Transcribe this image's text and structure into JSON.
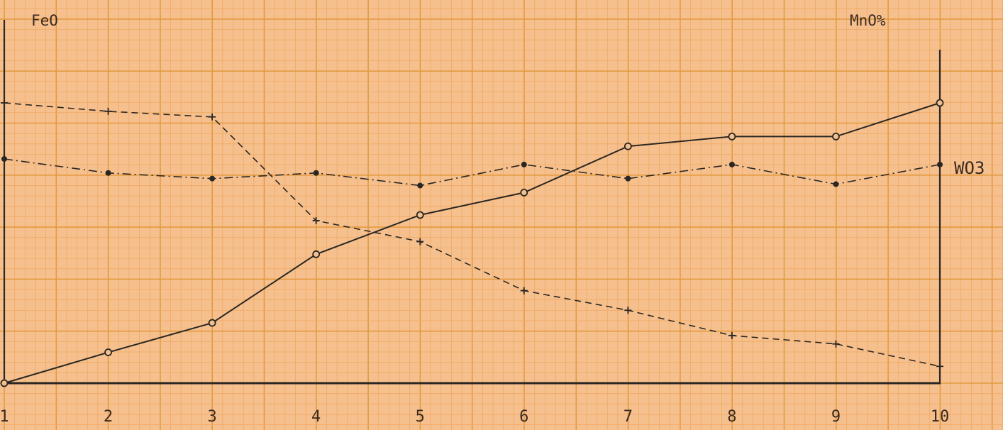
{
  "chart_data": {
    "type": "line",
    "left_axis_label": "FeO",
    "right_axis_label": "MnO%",
    "x": [
      1,
      2,
      3,
      4,
      5,
      6,
      7,
      8,
      9,
      10
    ],
    "tick_labels": [
      "1",
      "2",
      "3",
      "4",
      "5",
      "6",
      "7",
      "8",
      "9",
      "10"
    ],
    "xlim": [
      1,
      10
    ],
    "ylim": [
      0,
      100
    ],
    "grid": true,
    "series": [
      {
        "key": "mno",
        "style": "solid",
        "marker": "open-circle",
        "values": [
          0,
          11,
          21.5,
          46,
          60,
          68,
          84.5,
          88,
          88,
          100
        ]
      },
      {
        "key": "feo",
        "style": "dashed",
        "marker": "plus",
        "values": [
          100,
          97,
          95,
          58,
          50.5,
          33,
          26,
          17,
          14,
          6
        ]
      },
      {
        "key": "wo3",
        "name": "WO3",
        "style": "dash-dot",
        "marker": "filled-dot",
        "values": [
          80,
          75,
          73,
          75,
          70.5,
          78,
          73,
          78,
          71,
          78
        ]
      }
    ],
    "colors": {
      "paper": "#f6c08e",
      "grid_minor": "#eea962",
      "grid_major": "#e39a3e",
      "ink": "#2a2622",
      "label_ink": "#3a2a20"
    }
  }
}
